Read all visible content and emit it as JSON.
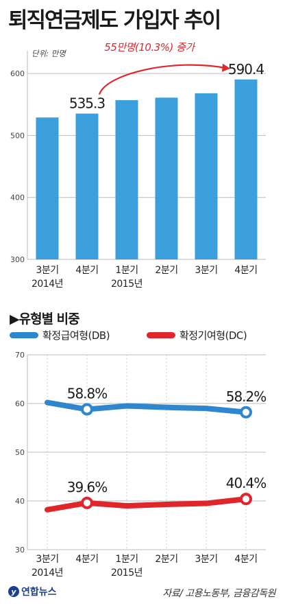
{
  "title": "퇴직연금제도 가입자 추이",
  "section2_title": "▶유형별 비중",
  "source": "자료/ 고용노동부, 금융감독원",
  "logo_text": "연합뉴스",
  "colors": {
    "bar": "#3a9fdb",
    "db": "#2e86cf",
    "dc": "#e0262b",
    "annotation": "#e0262b",
    "grid": "#bbbbbb"
  },
  "chart_data": [
    {
      "type": "bar",
      "unit_label": "단위: 만명",
      "categories": [
        [
          "3분기",
          "2014년"
        ],
        [
          "4분기",
          ""
        ],
        [
          "1분기",
          "2015년"
        ],
        [
          "2분기",
          ""
        ],
        [
          "3분기",
          ""
        ],
        [
          "4분기",
          ""
        ]
      ],
      "values": [
        529,
        535.3,
        557,
        561,
        568,
        590.4
      ],
      "data_labels": [
        "",
        "535.3",
        "",
        "",
        "",
        "590.4"
      ],
      "ylim": [
        300,
        630
      ],
      "yticks": [
        300,
        400,
        500,
        600
      ],
      "annotation": "55만명(10.3%) 증가",
      "grid": true
    },
    {
      "type": "line",
      "categories": [
        [
          "3분기",
          "2014년"
        ],
        [
          "4분기",
          ""
        ],
        [
          "1분기",
          "2015년"
        ],
        [
          "2분기",
          ""
        ],
        [
          "3분기",
          ""
        ],
        [
          "4분기",
          ""
        ]
      ],
      "series": [
        {
          "name": "확정급여형(DB)",
          "color": "#2e86cf",
          "values": [
            60.2,
            58.8,
            59.5,
            59.2,
            59.0,
            58.2
          ],
          "labels": [
            "",
            "58.8%",
            "",
            "",
            "",
            "58.2%"
          ],
          "markers": [
            false,
            true,
            false,
            false,
            false,
            true
          ]
        },
        {
          "name": "확정기여형(DC)",
          "color": "#e0262b",
          "values": [
            38.2,
            39.6,
            39.0,
            39.3,
            39.5,
            40.4
          ],
          "labels": [
            "",
            "39.6%",
            "",
            "",
            "",
            "40.4%"
          ],
          "markers": [
            false,
            true,
            false,
            false,
            false,
            true
          ]
        }
      ],
      "ylim": [
        30,
        70
      ],
      "yticks": [
        30,
        40,
        50,
        60,
        70
      ],
      "grid": true
    }
  ]
}
